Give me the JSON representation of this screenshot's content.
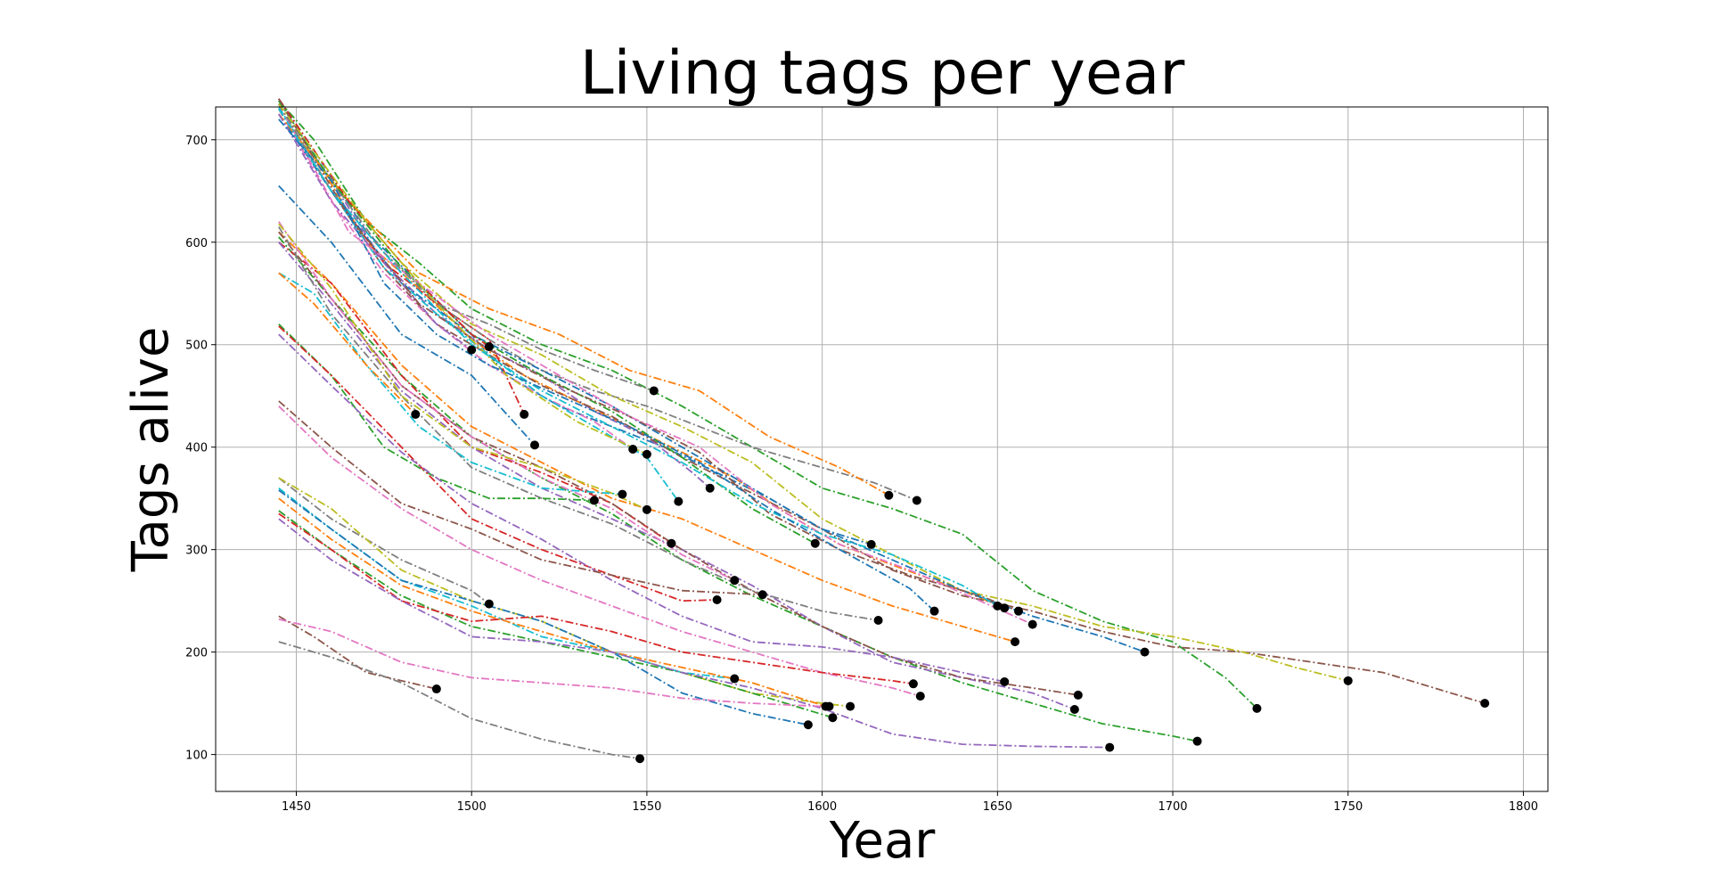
{
  "chart_data": {
    "type": "line",
    "title": "Living tags per year",
    "xlabel": "Year",
    "ylabel": "Tags alive",
    "xlim": [
      1427,
      1807
    ],
    "ylim": [
      64,
      732
    ],
    "xticks": [
      1450,
      1500,
      1550,
      1600,
      1650,
      1700,
      1750,
      1800
    ],
    "yticks": [
      100,
      200,
      300,
      400,
      500,
      600,
      700
    ],
    "grid": true,
    "line_style": "dash-dot",
    "end_marker": "black-dot",
    "palette": [
      "#1f77b4",
      "#ff7f0e",
      "#2ca02c",
      "#d62728",
      "#9467bd",
      "#8c564b",
      "#e377c2",
      "#7f7f7f",
      "#bcbd22",
      "#17becf"
    ],
    "series": [
      {
        "x": [
          1445,
          1455,
          1470,
          1485,
          1500,
          1510,
          1525,
          1540,
          1555,
          1570,
          1585,
          1600,
          1614
        ],
        "values": [
          740,
          690,
          610,
          560,
          510,
          470,
          440,
          420,
          400,
          375,
          350,
          320,
          305
        ]
      },
      {
        "x": [
          1445,
          1455,
          1470,
          1485,
          1500,
          1515,
          1530,
          1545,
          1560,
          1575,
          1590,
          1605,
          1620,
          1640,
          1652
        ],
        "values": [
          735,
          685,
          600,
          555,
          505,
          470,
          445,
          420,
          395,
          370,
          335,
          305,
          285,
          260,
          243
        ]
      },
      {
        "x": [
          1445,
          1455,
          1470,
          1485,
          1500,
          1520,
          1540,
          1560,
          1580,
          1600,
          1620,
          1640,
          1660,
          1680,
          1700,
          1715,
          1724
        ],
        "values": [
          738,
          700,
          620,
          580,
          535,
          500,
          475,
          440,
          400,
          360,
          340,
          315,
          260,
          230,
          210,
          175,
          145
        ]
      },
      {
        "x": [
          1445,
          1460,
          1475,
          1490,
          1505,
          1515
        ],
        "values": [
          730,
          650,
          580,
          540,
          505,
          432
        ]
      },
      {
        "x": [
          1445,
          1460,
          1475,
          1490,
          1505,
          1520,
          1535,
          1550,
          1563,
          1568
        ],
        "values": [
          738,
          660,
          580,
          530,
          495,
          470,
          435,
          410,
          375,
          360
        ]
      },
      {
        "x": [
          1445,
          1460,
          1475,
          1490,
          1505,
          1520,
          1540,
          1560,
          1580,
          1600,
          1620,
          1640,
          1660,
          1680,
          1700,
          1720,
          1740,
          1760,
          1789
        ],
        "values": [
          735,
          650,
          575,
          520,
          490,
          460,
          430,
          390,
          355,
          320,
          280,
          255,
          240,
          220,
          205,
          200,
          190,
          180,
          150
        ]
      },
      {
        "x": [
          1445,
          1460,
          1475,
          1490,
          1505,
          1520,
          1535,
          1546
        ],
        "values": [
          730,
          640,
          570,
          520,
          480,
          450,
          425,
          398
        ]
      },
      {
        "x": [
          1445,
          1460,
          1475,
          1490,
          1505,
          1520,
          1535,
          1550,
          1565,
          1580,
          1600,
          1615,
          1627
        ],
        "values": [
          735,
          660,
          590,
          540,
          505,
          475,
          455,
          440,
          420,
          400,
          380,
          365,
          348
        ]
      },
      {
        "x": [
          1445,
          1460,
          1480,
          1500,
          1520,
          1540,
          1560,
          1580,
          1600,
          1620,
          1640,
          1660,
          1680,
          1700,
          1720,
          1735,
          1750
        ],
        "values": [
          730,
          660,
          580,
          520,
          490,
          450,
          420,
          385,
          330,
          295,
          260,
          245,
          225,
          215,
          200,
          185,
          172
        ]
      },
      {
        "x": [
          1445,
          1460,
          1475,
          1490,
          1505,
          1520,
          1535,
          1550,
          1559
        ],
        "values": [
          732,
          650,
          575,
          530,
          490,
          450,
          420,
          390,
          347
        ]
      },
      {
        "x": [
          1445,
          1460,
          1480,
          1500,
          1520,
          1540,
          1560,
          1580,
          1600,
          1620,
          1640,
          1660,
          1680,
          1692
        ],
        "values": [
          725,
          650,
          560,
          510,
          475,
          440,
          400,
          360,
          320,
          290,
          260,
          235,
          215,
          200
        ]
      },
      {
        "x": [
          1445,
          1465,
          1485,
          1505,
          1525,
          1545,
          1565,
          1585,
          1605,
          1619
        ],
        "values": [
          725,
          640,
          570,
          535,
          510,
          475,
          455,
          410,
          380,
          353
        ]
      },
      {
        "x": [
          1445,
          1460,
          1480,
          1500,
          1520,
          1540,
          1560,
          1580,
          1598
        ],
        "values": [
          738,
          660,
          575,
          510,
          470,
          435,
          390,
          340,
          306
        ]
      },
      {
        "x": [
          1445,
          1465,
          1485,
          1500,
          1505
        ],
        "values": [
          740,
          640,
          560,
          510,
          498
        ]
      },
      {
        "x": [
          1445,
          1460,
          1475,
          1490,
          1500
        ],
        "values": [
          725,
          640,
          580,
          520,
          495
        ]
      },
      {
        "x": [
          1445,
          1465,
          1485,
          1505,
          1525,
          1545,
          1565,
          1585,
          1605,
          1625,
          1645,
          1656
        ],
        "values": [
          740,
          625,
          540,
          495,
          460,
          430,
          395,
          335,
          300,
          275,
          255,
          240
        ]
      },
      {
        "x": [
          1445,
          1465,
          1485,
          1505,
          1525,
          1545,
          1565,
          1585,
          1605,
          1625,
          1645,
          1660
        ],
        "values": [
          735,
          610,
          560,
          510,
          470,
          430,
          400,
          345,
          305,
          280,
          250,
          227
        ]
      },
      {
        "x": [
          1445,
          1460,
          1475,
          1490,
          1505,
          1520,
          1535,
          1552
        ],
        "values": [
          735,
          650,
          590,
          540,
          520,
          495,
          475,
          455
        ]
      },
      {
        "x": [
          1445,
          1470,
          1490,
          1510,
          1530,
          1550
        ],
        "values": [
          735,
          620,
          540,
          470,
          425,
          393
        ]
      },
      {
        "x": [
          1445,
          1460,
          1480,
          1500,
          1520,
          1540,
          1560,
          1580,
          1600,
          1620,
          1640,
          1650
        ],
        "values": [
          730,
          650,
          570,
          500,
          455,
          420,
          385,
          345,
          315,
          295,
          265,
          245
        ]
      },
      {
        "x": [
          1445,
          1460,
          1475,
          1490,
          1505,
          1525,
          1545,
          1565,
          1585,
          1605,
          1625,
          1632
        ],
        "values": [
          720,
          660,
          560,
          510,
          480,
          450,
          420,
          385,
          340,
          300,
          262,
          240
        ]
      },
      {
        "x": [
          1445,
          1460,
          1480,
          1500,
          1520,
          1540,
          1560,
          1580,
          1600,
          1620,
          1640,
          1655
        ],
        "values": [
          610,
          560,
          480,
          420,
          385,
          350,
          330,
          300,
          270,
          245,
          225,
          210
        ]
      },
      {
        "x": [
          1445,
          1460,
          1480,
          1500,
          1520,
          1540,
          1560,
          1580,
          1600,
          1620,
          1640,
          1660,
          1680,
          1700,
          1707
        ],
        "values": [
          605,
          545,
          470,
          410,
          370,
          335,
          290,
          255,
          225,
          195,
          170,
          150,
          130,
          118,
          113
        ]
      },
      {
        "x": [
          1445,
          1460,
          1480,
          1500,
          1520,
          1540,
          1557
        ],
        "values": [
          600,
          560,
          470,
          400,
          375,
          345,
          306
        ]
      },
      {
        "x": [
          1445,
          1460,
          1480,
          1500,
          1520,
          1540,
          1560,
          1580,
          1600,
          1620,
          1640,
          1660,
          1672
        ],
        "values": [
          600,
          540,
          455,
          400,
          360,
          330,
          300,
          265,
          225,
          190,
          175,
          160,
          144
        ]
      },
      {
        "x": [
          1445,
          1460,
          1480,
          1500,
          1520,
          1540,
          1560,
          1580,
          1600,
          1620,
          1640,
          1660,
          1673
        ],
        "values": [
          610,
          545,
          460,
          410,
          380,
          345,
          300,
          260,
          225,
          195,
          175,
          165,
          158
        ]
      },
      {
        "x": [
          1445,
          1460,
          1480,
          1500,
          1520,
          1540,
          1560,
          1575
        ],
        "values": [
          620,
          545,
          460,
          410,
          370,
          340,
          295,
          270
        ]
      },
      {
        "x": [
          1445,
          1460,
          1480,
          1500,
          1520,
          1540,
          1560,
          1580,
          1600,
          1616
        ],
        "values": [
          615,
          530,
          450,
          380,
          350,
          325,
          290,
          260,
          240,
          231
        ]
      },
      {
        "x": [
          1445,
          1460,
          1480,
          1500,
          1520,
          1540,
          1550
        ],
        "values": [
          618,
          555,
          450,
          400,
          380,
          355,
          339
        ]
      },
      {
        "x": [
          1445,
          1455,
          1470,
          1485,
          1500,
          1520,
          1543
        ],
        "values": [
          570,
          550,
          480,
          420,
          385,
          360,
          354
        ]
      },
      {
        "x": [
          1445,
          1460,
          1480,
          1500,
          1518
        ],
        "values": [
          655,
          600,
          510,
          470,
          402
        ]
      },
      {
        "x": [
          1445,
          1455,
          1470,
          1484
        ],
        "values": [
          570,
          540,
          480,
          432
        ]
      },
      {
        "x": [
          1445,
          1460,
          1475,
          1490,
          1505,
          1520,
          1535
        ],
        "values": [
          520,
          470,
          400,
          370,
          350,
          350,
          348
        ]
      },
      {
        "x": [
          1445,
          1460,
          1480,
          1500,
          1520,
          1540,
          1560,
          1570
        ],
        "values": [
          518,
          470,
          400,
          330,
          300,
          275,
          250,
          251
        ]
      },
      {
        "x": [
          1445,
          1460,
          1480,
          1500,
          1520,
          1540,
          1560,
          1580,
          1600,
          1620,
          1640,
          1652
        ],
        "values": [
          510,
          460,
          395,
          345,
          310,
          270,
          235,
          210,
          205,
          195,
          180,
          171
        ]
      },
      {
        "x": [
          1445,
          1460,
          1480,
          1500,
          1520,
          1540,
          1560,
          1583
        ],
        "values": [
          445,
          400,
          345,
          320,
          290,
          275,
          260,
          256
        ]
      },
      {
        "x": [
          1445,
          1460,
          1480,
          1500,
          1520,
          1540,
          1560,
          1580,
          1600,
          1620,
          1628
        ],
        "values": [
          440,
          390,
          340,
          300,
          270,
          245,
          220,
          200,
          180,
          165,
          157
        ]
      },
      {
        "x": [
          1445,
          1460,
          1480,
          1500,
          1505
        ],
        "values": [
          370,
          330,
          290,
          260,
          247
        ]
      },
      {
        "x": [
          1445,
          1460,
          1480,
          1500,
          1520,
          1540,
          1560,
          1580,
          1600,
          1608
        ],
        "values": [
          370,
          340,
          280,
          250,
          230,
          200,
          180,
          160,
          150,
          147
        ]
      },
      {
        "x": [
          1445,
          1460,
          1480,
          1500,
          1520,
          1540,
          1560,
          1575
        ],
        "values": [
          360,
          320,
          270,
          245,
          215,
          200,
          180,
          174
        ]
      },
      {
        "x": [
          1445,
          1460,
          1480,
          1500,
          1520,
          1540,
          1560,
          1580,
          1596
        ],
        "values": [
          358,
          320,
          270,
          250,
          230,
          200,
          160,
          140,
          129
        ]
      },
      {
        "x": [
          1445,
          1460,
          1480,
          1500,
          1520,
          1540,
          1560,
          1580,
          1601
        ],
        "values": [
          350,
          310,
          265,
          240,
          220,
          200,
          185,
          170,
          147
        ]
      },
      {
        "x": [
          1445,
          1460,
          1480,
          1500,
          1520,
          1540,
          1560,
          1580,
          1603
        ],
        "values": [
          338,
          300,
          255,
          225,
          210,
          195,
          180,
          160,
          136
        ]
      },
      {
        "x": [
          1445,
          1460,
          1480,
          1500,
          1520,
          1540,
          1560,
          1580,
          1600,
          1620,
          1626
        ],
        "values": [
          335,
          300,
          250,
          230,
          235,
          220,
          200,
          190,
          180,
          172,
          169
        ]
      },
      {
        "x": [
          1445,
          1460,
          1480,
          1500,
          1520,
          1540,
          1560,
          1580,
          1600,
          1620,
          1640,
          1660,
          1682
        ],
        "values": [
          330,
          290,
          250,
          215,
          210,
          200,
          180,
          165,
          145,
          120,
          110,
          108,
          107
        ]
      },
      {
        "x": [
          1445,
          1455,
          1470,
          1490
        ],
        "values": [
          235,
          215,
          180,
          164
        ]
      },
      {
        "x": [
          1445,
          1460,
          1480,
          1500,
          1520,
          1540,
          1560,
          1580,
          1600,
          1602
        ],
        "values": [
          232,
          220,
          190,
          175,
          170,
          165,
          155,
          150,
          147,
          147
        ]
      },
      {
        "x": [
          1445,
          1460,
          1480,
          1500,
          1520,
          1540,
          1548
        ],
        "values": [
          210,
          195,
          170,
          135,
          115,
          100,
          96
        ]
      }
    ]
  }
}
